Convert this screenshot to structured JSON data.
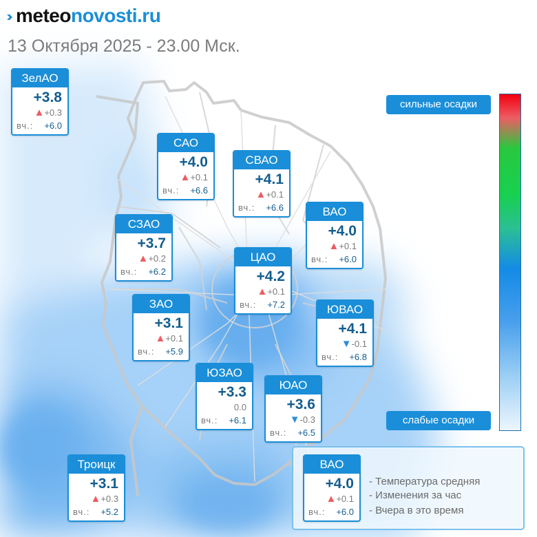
{
  "header": {
    "logo_part1": "meteo",
    "logo_part2": "novosti.ru",
    "datetime": "13 Октября 2025 - 23.00 Мск."
  },
  "yesterday_label": "вч.:",
  "districts": [
    {
      "name": "ЗелАО",
      "temp": "+3.8",
      "trend": "up",
      "delta": "+0.3",
      "yesterday": "+6.0"
    },
    {
      "name": "САО",
      "temp": "+4.0",
      "trend": "up",
      "delta": "+0.1",
      "yesterday": "+6.6"
    },
    {
      "name": "СВАО",
      "temp": "+4.1",
      "trend": "up",
      "delta": "+0.1",
      "yesterday": "+6.6"
    },
    {
      "name": "ВАО",
      "temp": "+4.0",
      "trend": "up",
      "delta": "+0.1",
      "yesterday": "+6.0"
    },
    {
      "name": "СЗАО",
      "temp": "+3.7",
      "trend": "up",
      "delta": "+0.2",
      "yesterday": "+6.2"
    },
    {
      "name": "ЦАО",
      "temp": "+4.2",
      "trend": "up",
      "delta": "+0.1",
      "yesterday": "+7.2"
    },
    {
      "name": "ЗАО",
      "temp": "+3.1",
      "trend": "up",
      "delta": "+0.1",
      "yesterday": "+5.9"
    },
    {
      "name": "ЮВАО",
      "temp": "+4.1",
      "trend": "down",
      "delta": "-0.1",
      "yesterday": "+6.8"
    },
    {
      "name": "ЮЗАО",
      "temp": "+3.3",
      "trend": "none",
      "delta": "0.0",
      "yesterday": "+6.1"
    },
    {
      "name": "ЮАО",
      "temp": "+3.6",
      "trend": "down",
      "delta": "-0.3",
      "yesterday": "+6.5"
    },
    {
      "name": "Троицк",
      "temp": "+3.1",
      "trend": "up",
      "delta": "+0.3",
      "yesterday": "+5.2"
    }
  ],
  "precip_scale": {
    "strong_label": "сильные осадки",
    "weak_label": "слабые осадки",
    "colors": [
      "#f3000f",
      "#28c83e",
      "#148be6",
      "#ecf6fd"
    ]
  },
  "legend": {
    "sample": {
      "name": "ВАО",
      "temp": "+4.0",
      "trend": "up",
      "delta": "+0.1",
      "yesterday": "+6.0"
    },
    "lines": [
      "- Температура средняя",
      "- Изменения за час",
      "- Вчера в это время"
    ]
  },
  "colors": {
    "accent": "#1a8ed8",
    "temp_text": "#135d8e",
    "trend_up": "#ec5d61",
    "trend_down": "#2d8ed8"
  }
}
